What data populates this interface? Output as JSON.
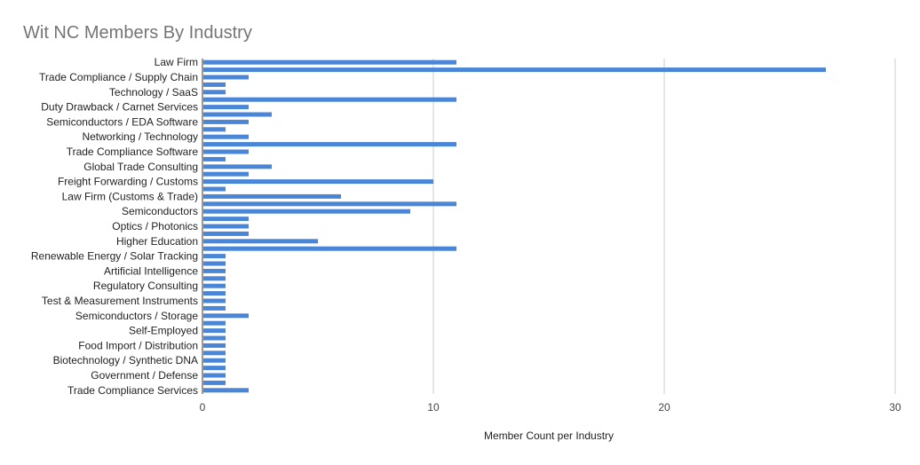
{
  "chart_data": {
    "type": "bar",
    "orientation": "horizontal",
    "title": "Wit NC Members By Industry",
    "xlabel": "Member Count per Industry",
    "ylabel": "",
    "xlim": [
      0,
      30
    ],
    "xticks": [
      "0",
      "10",
      "20",
      "30"
    ],
    "grid": true,
    "legend": "none",
    "bar_color": "#4a86d8",
    "categories": [
      "Law Firm",
      "",
      "Trade Compliance / Supply Chain",
      "",
      "Technology / SaaS",
      "",
      "Duty Drawback / Carnet Services",
      "",
      "Semiconductors / EDA Software",
      "",
      "Networking / Technology",
      "",
      "Trade Compliance Software",
      "",
      "Global Trade Consulting",
      "",
      "Freight Forwarding / Customs",
      "",
      "Law Firm (Customs & Trade)",
      "",
      "Semiconductors",
      "",
      "Optics / Photonics",
      "",
      "Higher Education",
      "",
      "Renewable Energy / Solar Tracking",
      "",
      "Artificial Intelligence",
      "",
      "Regulatory Consulting",
      "",
      "Test & Measurement Instruments",
      "",
      "Semiconductors / Storage",
      "",
      "Self-Employed",
      "",
      "Food Import / Distribution",
      "",
      "Biotechnology / Synthetic DNA",
      "",
      "Government / Defense",
      "",
      "Trade Compliance Services"
    ],
    "values": [
      11,
      27,
      2,
      1,
      1,
      11,
      2,
      3,
      2,
      1,
      2,
      11,
      2,
      1,
      3,
      2,
      10,
      1,
      6,
      11,
      9,
      2,
      2,
      2,
      5,
      11,
      1,
      1,
      1,
      1,
      1,
      1,
      1,
      1,
      2,
      1,
      1,
      1,
      1,
      1,
      1,
      1,
      1,
      1,
      2
    ]
  }
}
